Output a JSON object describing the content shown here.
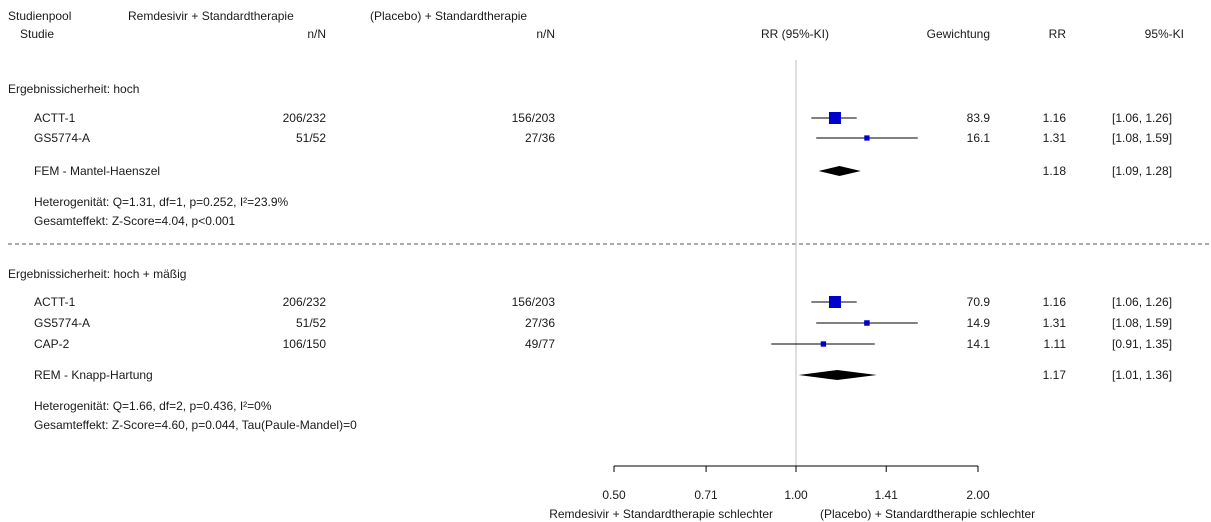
{
  "header": {
    "col1_top": "Studienpool",
    "col1_bottom": "Studie",
    "col2_top": "Remdesivir + Standardtherapie",
    "col2_bottom": "n/N",
    "col3_top": "(Placebo) + Standardtherapie",
    "col3_bottom": "n/N",
    "col4": "RR (95%-KI)",
    "col5": "Gewichtung",
    "col6": "RR",
    "col7": "95%-KI"
  },
  "footer": {
    "left_label": "Remdesivir + Standardtherapie  schlechter",
    "right_label": "(Placebo) + Standardtherapie schlechter"
  },
  "chart_data": {
    "type": "forest",
    "x_scale": "log",
    "x_ticks": [
      0.5,
      0.71,
      1.0,
      1.41,
      2.0
    ],
    "x_tick_labels": [
      "0.50",
      "0.71",
      "1.00",
      "1.41",
      "2.00"
    ],
    "reference_line": 1.0,
    "groups": [
      {
        "title": "Ergebnissicherheit: hoch",
        "studies": [
          {
            "name": "ACTT-1",
            "treat": "206/232",
            "ctrl": "156/203",
            "rr": 1.16,
            "lo": 1.06,
            "hi": 1.26,
            "weight": "83.9",
            "rr_label": "1.16",
            "ci_label": "[1.06, 1.26]"
          },
          {
            "name": "GS5774-A",
            "treat": "51/52",
            "ctrl": "27/36",
            "rr": 1.31,
            "lo": 1.08,
            "hi": 1.59,
            "weight": "16.1",
            "rr_label": "1.31",
            "ci_label": "[1.08, 1.59]"
          }
        ],
        "pooled": {
          "name": "FEM - Mantel-Haenszel",
          "rr": 1.18,
          "lo": 1.09,
          "hi": 1.28,
          "rr_label": "1.18",
          "ci_label": "[1.09, 1.28]"
        },
        "heterogeneity": "Heterogenität: Q=1.31, df=1, p=0.252, I²=23.9%",
        "overall": "Gesamteffekt: Z-Score=4.04, p<0.001"
      },
      {
        "title": "Ergebnissicherheit: hoch + mäßig",
        "studies": [
          {
            "name": "ACTT-1",
            "treat": "206/232",
            "ctrl": "156/203",
            "rr": 1.16,
            "lo": 1.06,
            "hi": 1.26,
            "weight": "70.9",
            "rr_label": "1.16",
            "ci_label": "[1.06, 1.26]"
          },
          {
            "name": "GS5774-A",
            "treat": "51/52",
            "ctrl": "27/36",
            "rr": 1.31,
            "lo": 1.08,
            "hi": 1.59,
            "weight": "14.9",
            "rr_label": "1.31",
            "ci_label": "[1.08, 1.59]"
          },
          {
            "name": "CAP-2",
            "treat": "106/150",
            "ctrl": "49/77",
            "rr": 1.11,
            "lo": 0.91,
            "hi": 1.35,
            "weight": "14.1",
            "rr_label": "1.11",
            "ci_label": "[0.91, 1.35]"
          }
        ],
        "pooled": {
          "name": "REM - Knapp-Hartung",
          "rr": 1.17,
          "lo": 1.01,
          "hi": 1.36,
          "rr_label": "1.17",
          "ci_label": "[1.01, 1.36]"
        },
        "heterogeneity": "Heterogenität: Q=1.66, df=2, p=0.436, I²=0%",
        "overall": "Gesamteffekt: Z-Score=4.60, p=0.044, Tau(Paule-Mandel)=0"
      }
    ],
    "colors": {
      "study_marker": "#0000cc",
      "pooled_diamond": "#000000",
      "ci_line": "#000000",
      "reference_line": "#bdbdbd",
      "divider": "#555555"
    }
  }
}
